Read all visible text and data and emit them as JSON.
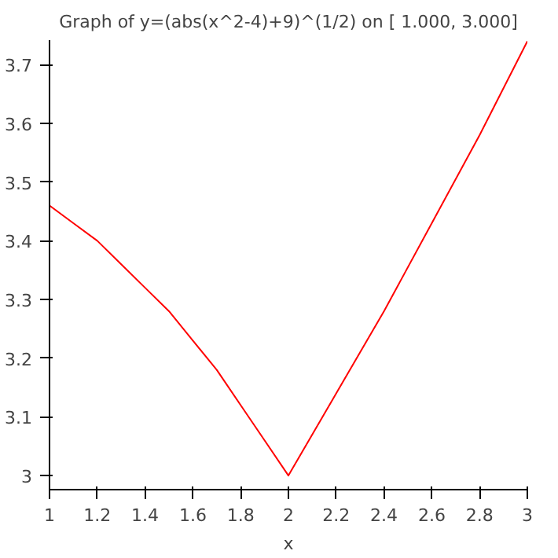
{
  "chart_data": {
    "type": "line",
    "title": "Graph of y=(abs(x^2-4)+9)^(1/2) on [ 1.000, 3.000]",
    "xlabel": "x",
    "x": [
      1.0,
      1.1,
      1.2,
      1.3,
      1.4,
      1.5,
      1.6,
      1.7,
      1.8,
      1.9,
      2.0,
      2.2,
      2.4,
      2.6,
      2.8,
      3.0
    ],
    "series": [
      {
        "color": "#ff0000",
        "values": [
          3.46,
          3.43,
          3.4,
          3.36,
          3.32,
          3.28,
          3.23,
          3.18,
          3.12,
          3.06,
          3.0,
          3.14,
          3.28,
          3.43,
          3.58,
          3.74
        ]
      }
    ],
    "xlim": [
      1,
      3
    ],
    "ylim": [
      2.976,
      3.742
    ],
    "xticks": [
      1,
      1.2,
      1.4,
      1.6,
      1.8,
      2,
      2.2,
      2.4,
      2.6,
      2.8,
      3
    ],
    "yticks": [
      3,
      3.1,
      3.2,
      3.3,
      3.4,
      3.5,
      3.6,
      3.7
    ],
    "grid": false,
    "marker": "none",
    "line_style": "solid"
  }
}
